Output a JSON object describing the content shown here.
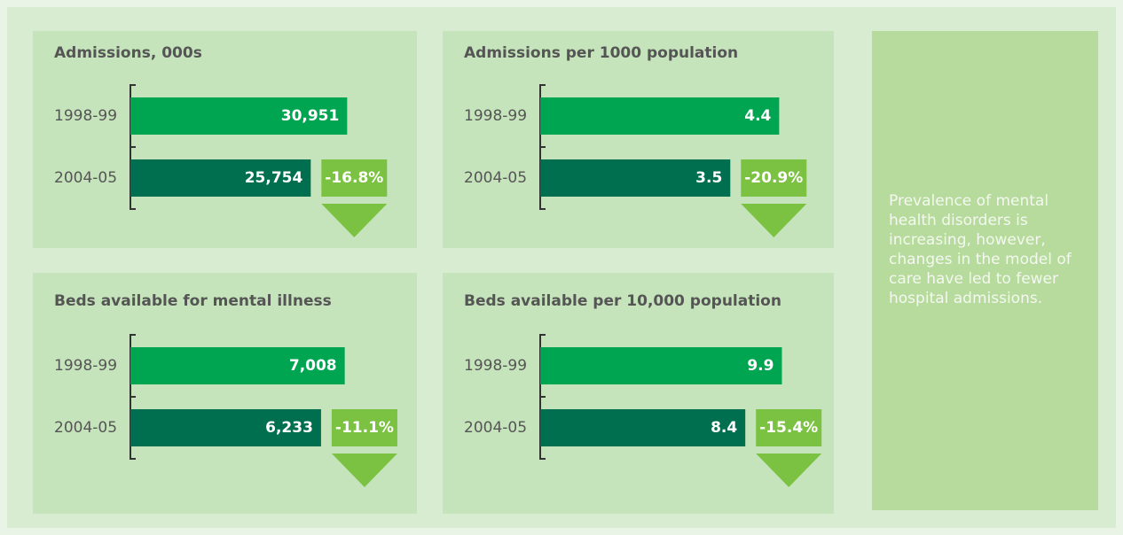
{
  "chart_data": [
    {
      "type": "hbar",
      "title": "Admissions, 000s",
      "categories": [
        "1998-99",
        "2004-05"
      ],
      "values": [
        30951,
        25754
      ],
      "value_labels": [
        "30,951",
        "25,754"
      ],
      "colors": [
        "#00a551",
        "#006f4f"
      ],
      "xlim": [
        0,
        38000
      ],
      "change": {
        "value": -16.8,
        "label": "-16.8%"
      },
      "change_color": "#7cc242"
    },
    {
      "type": "hbar",
      "title": "Admissions per 1000 population",
      "categories": [
        "1998-99",
        "2004-05"
      ],
      "values": [
        4.4,
        3.5
      ],
      "colors": [
        "#00a551",
        "#006f4f"
      ],
      "xlim": [
        0,
        4.9
      ],
      "change": {
        "value": -20.9,
        "label": "-20.9%"
      },
      "change_color": "#7cc242"
    },
    {
      "type": "hbar",
      "title": "Beds available for mental illness",
      "categories": [
        "1998-99",
        "2004-05"
      ],
      "values": [
        7008,
        6233
      ],
      "value_labels": [
        "7,008",
        "6,233"
      ],
      "colors": [
        "#00a551",
        "#006f4f"
      ],
      "xlim": [
        0,
        8700
      ],
      "change": {
        "value": -11.1,
        "label": "-11.1%"
      },
      "change_color": "#7cc242"
    },
    {
      "type": "hbar",
      "title": "Beds available per 10,000 population",
      "categories": [
        "1998-99",
        "2004-05"
      ],
      "values": [
        9.9,
        8.4
      ],
      "colors": [
        "#00a551",
        "#006f4f"
      ],
      "xlim": [
        0,
        10.9
      ],
      "change": {
        "value": -15.4,
        "label": "-15.4%"
      },
      "change_color": "#7cc242"
    }
  ],
  "note": "Prevalence of mental health disorders is increasing, however, changes in the model of care have led to fewer hospital admissions."
}
